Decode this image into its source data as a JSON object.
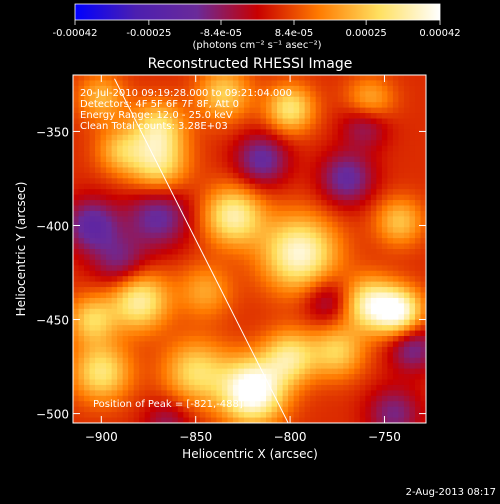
{
  "chart_data": {
    "type": "heatmap",
    "title": "Reconstructed RHESSI Image",
    "xlabel": "Heliocentric X (arcsec)",
    "ylabel": "Heliocentric Y (arcsec)",
    "xlim": [
      -915,
      -728
    ],
    "ylim": [
      -505,
      -320
    ],
    "x_ticks": [
      -900,
      -850,
      -800,
      -750
    ],
    "y_ticks": [
      -500,
      -450,
      -400,
      -350
    ],
    "x_tick_labels": [
      "−900",
      "−850",
      "−800",
      "−750"
    ],
    "y_tick_labels": [
      "−500",
      "−450",
      "−400",
      "−350"
    ],
    "colorbar": {
      "range": [
        -0.00042,
        0.00042
      ],
      "tick_values": [
        -0.00042,
        -0.00025,
        -8.4e-05,
        8.4e-05,
        0.00025,
        0.00042
      ],
      "tick_labels": [
        "-0.00042",
        "-0.00025",
        "-8.4e-05",
        "8.4e-05",
        "0.00025",
        "0.00042"
      ],
      "units": "(photons cm⁻² s⁻¹ asec⁻²)",
      "stops": [
        "#0000ff",
        "#4c1fb0",
        "#6a2a9a",
        "#c80000",
        "#ff7a00",
        "#ffe060",
        "#ffffff"
      ]
    },
    "annotations": [
      "20-Jul-2010 09:19:28.000 to 09:21:04.000",
      "Detectors: 4F 5F 6F 7F 8F, Att 0",
      "Energy Range: 12.0 - 25.0 keV",
      "Clean     Total counts: 3.28E+03"
    ],
    "peak_label": "Position of Peak = [-821,-488]",
    "limb_line": [
      [
        -893,
        -322
      ],
      [
        -801,
        -505
      ]
    ],
    "sources": [
      {
        "x": -820,
        "y": -488,
        "v": 1.0,
        "s": 12
      },
      {
        "x": -800,
        "y": -470,
        "v": 0.6,
        "s": 10
      },
      {
        "x": -850,
        "y": -478,
        "v": 0.55,
        "s": 12
      },
      {
        "x": -795,
        "y": -415,
        "v": 0.8,
        "s": 14
      },
      {
        "x": -830,
        "y": -395,
        "v": 0.7,
        "s": 11
      },
      {
        "x": -870,
        "y": -368,
        "v": 0.6,
        "s": 11
      },
      {
        "x": -870,
        "y": -348,
        "v": 0.55,
        "s": 10
      },
      {
        "x": -835,
        "y": -330,
        "v": 0.5,
        "s": 10
      },
      {
        "x": -800,
        "y": -338,
        "v": 0.6,
        "s": 9
      },
      {
        "x": -758,
        "y": -335,
        "v": 0.5,
        "s": 9
      },
      {
        "x": -742,
        "y": -398,
        "v": 0.45,
        "s": 9
      },
      {
        "x": -758,
        "y": -442,
        "v": 0.7,
        "s": 10
      },
      {
        "x": -742,
        "y": -446,
        "v": 0.8,
        "s": 9
      },
      {
        "x": -775,
        "y": -467,
        "v": 0.5,
        "s": 10
      },
      {
        "x": -880,
        "y": -440,
        "v": 0.7,
        "s": 11
      },
      {
        "x": -905,
        "y": -450,
        "v": 0.5,
        "s": 9
      },
      {
        "x": -900,
        "y": -478,
        "v": 0.6,
        "s": 11
      },
      {
        "x": -890,
        "y": -360,
        "v": 0.4,
        "s": 9
      },
      {
        "x": -845,
        "y": -435,
        "v": 0.35,
        "s": 10
      },
      {
        "x": -900,
        "y": -332,
        "v": 0.4,
        "s": 9
      },
      {
        "x": -870,
        "y": -395,
        "v": -0.5,
        "s": 12
      },
      {
        "x": -905,
        "y": -400,
        "v": -0.55,
        "s": 10
      },
      {
        "x": -890,
        "y": -420,
        "v": -0.4,
        "s": 10
      },
      {
        "x": -770,
        "y": -375,
        "v": -0.5,
        "s": 10
      },
      {
        "x": -760,
        "y": -345,
        "v": -0.45,
        "s": 9
      },
      {
        "x": -815,
        "y": -365,
        "v": -0.5,
        "s": 10
      },
      {
        "x": -735,
        "y": -465,
        "v": -0.45,
        "s": 9
      },
      {
        "x": -745,
        "y": -500,
        "v": -0.4,
        "s": 10
      },
      {
        "x": -865,
        "y": -505,
        "v": -0.3,
        "s": 9
      },
      {
        "x": -780,
        "y": -440,
        "v": -0.35,
        "s": 9
      }
    ]
  },
  "footer": {
    "timestamp": "2-Aug-2013 08:17"
  }
}
